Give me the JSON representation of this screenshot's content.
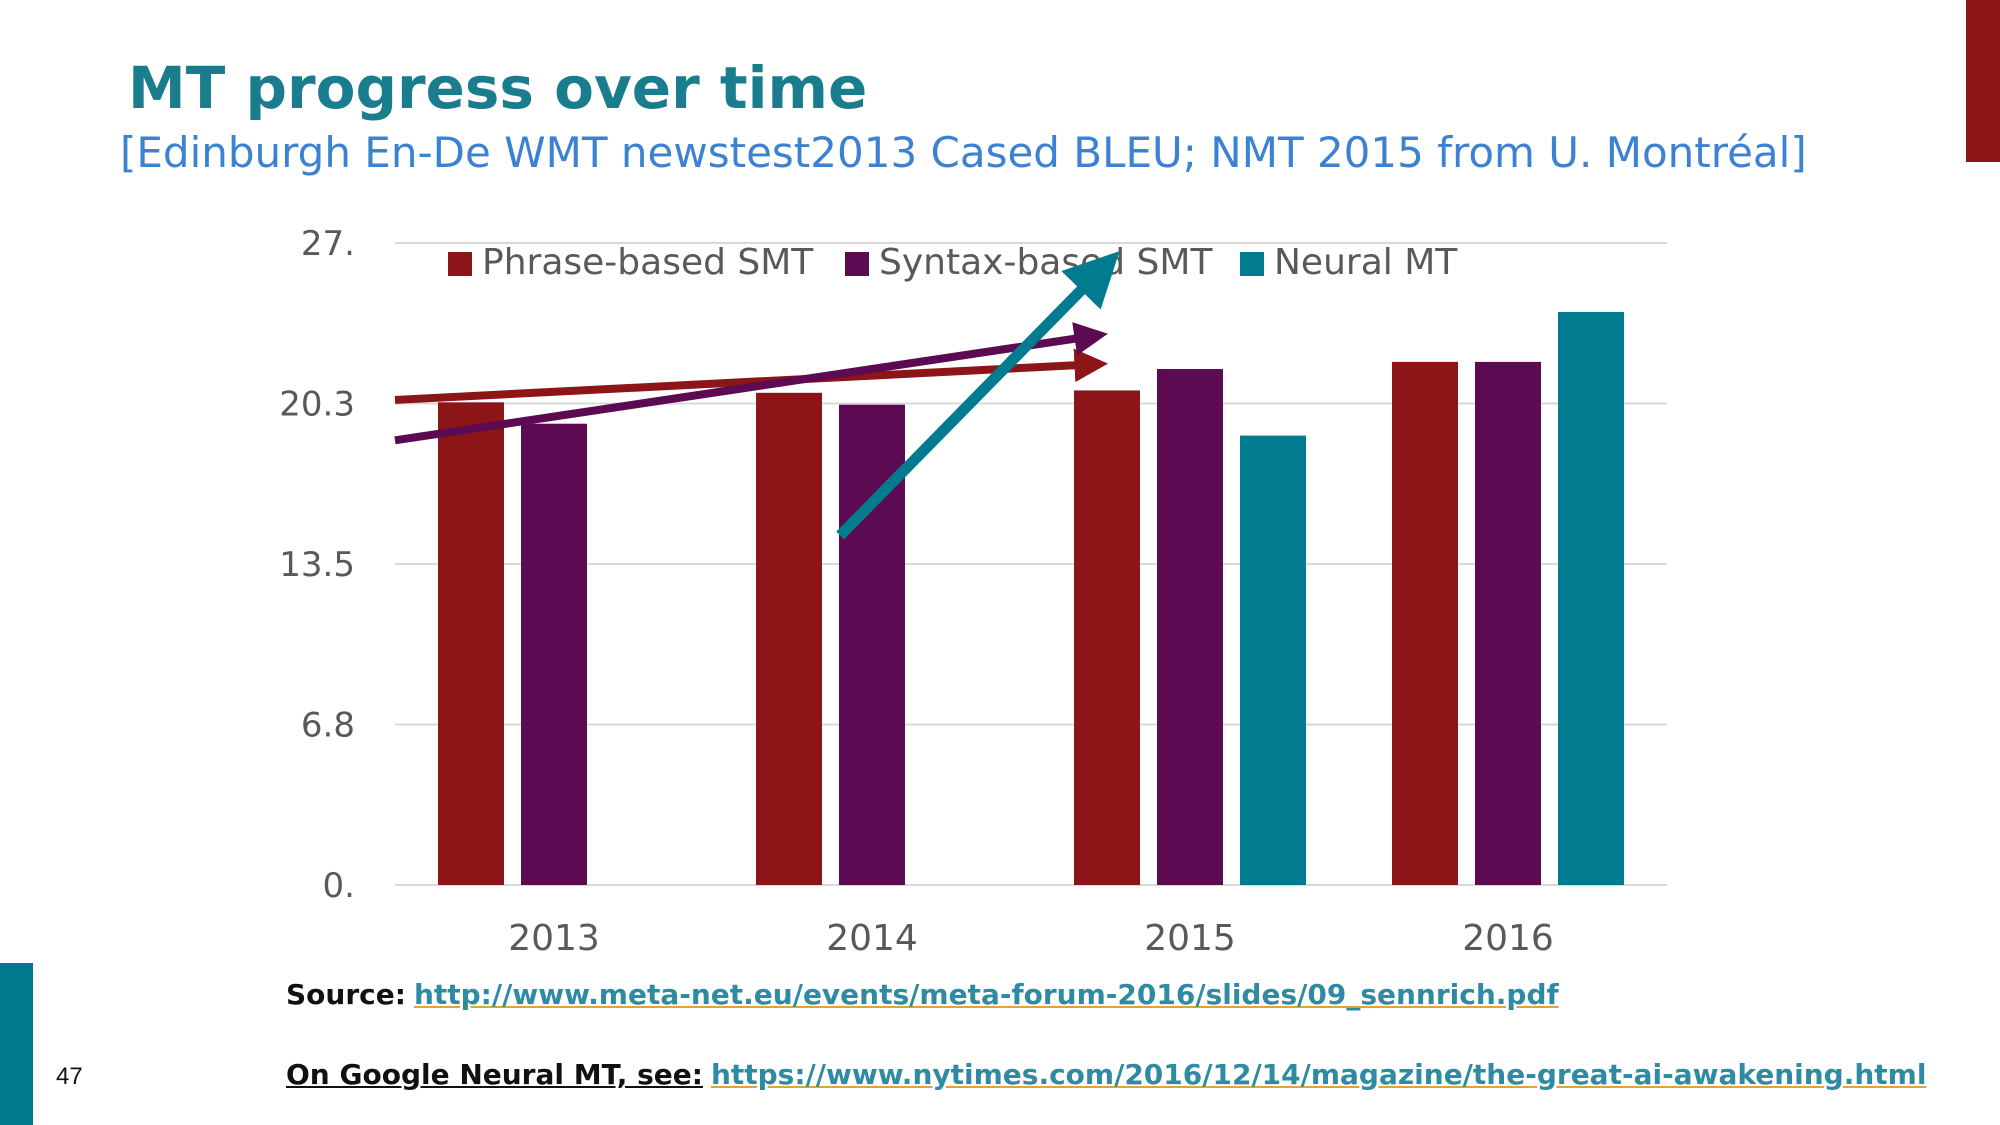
{
  "slide": {
    "title": "MT progress over time",
    "subtitle": "[Edinburgh En-De WMT newstest2013 Cased BLEU; NMT 2015 from U. Montréal]",
    "page_number": "47",
    "source_label": "Source:",
    "source_link": "http://www.meta-net.eu/events/meta-forum-2016/slides/09_sennrich.pdf",
    "google_label": "On Google Neural MT, see:",
    "google_link": "https://www.nytimes.com/2016/12/14/magazine/the-great-ai-awakening.html"
  },
  "colors": {
    "title": "#1a7d8e",
    "subtitle": "#3c82d2",
    "phrase": "#8b1517",
    "syntax": "#5c0a52",
    "neural": "#007b8f",
    "grid": "#d9d9d9"
  },
  "chart_data": {
    "type": "bar",
    "categories": [
      "2013",
      "2014",
      "2015",
      "2016"
    ],
    "series": [
      {
        "name": "Phrase-based SMT",
        "values": [
          20.3,
          20.7,
          20.8,
          22.0
        ]
      },
      {
        "name": "Syntax-based SMT",
        "values": [
          19.4,
          20.2,
          21.7,
          22.0
        ]
      },
      {
        "name": "Neural MT",
        "values": [
          null,
          null,
          18.9,
          24.1
        ]
      }
    ],
    "yticks": [
      "0.",
      "6.8",
      "13.5",
      "20.3",
      "27."
    ],
    "ytick_values": [
      0,
      6.75,
      13.5,
      20.25,
      27
    ],
    "ylim": [
      0,
      27
    ],
    "grid": true,
    "legend_position": "top",
    "trend_arrows": [
      {
        "series": "Phrase-based SMT",
        "from": [
          -0.5,
          20.4
        ],
        "to": [
          1.7,
          21.9
        ]
      },
      {
        "series": "Syntax-based SMT",
        "from": [
          -0.5,
          18.7
        ],
        "to": [
          1.7,
          23.1
        ]
      },
      {
        "series": "Neural MT",
        "from": [
          0.9,
          14.7
        ],
        "to": [
          1.73,
          26.0
        ]
      }
    ]
  }
}
